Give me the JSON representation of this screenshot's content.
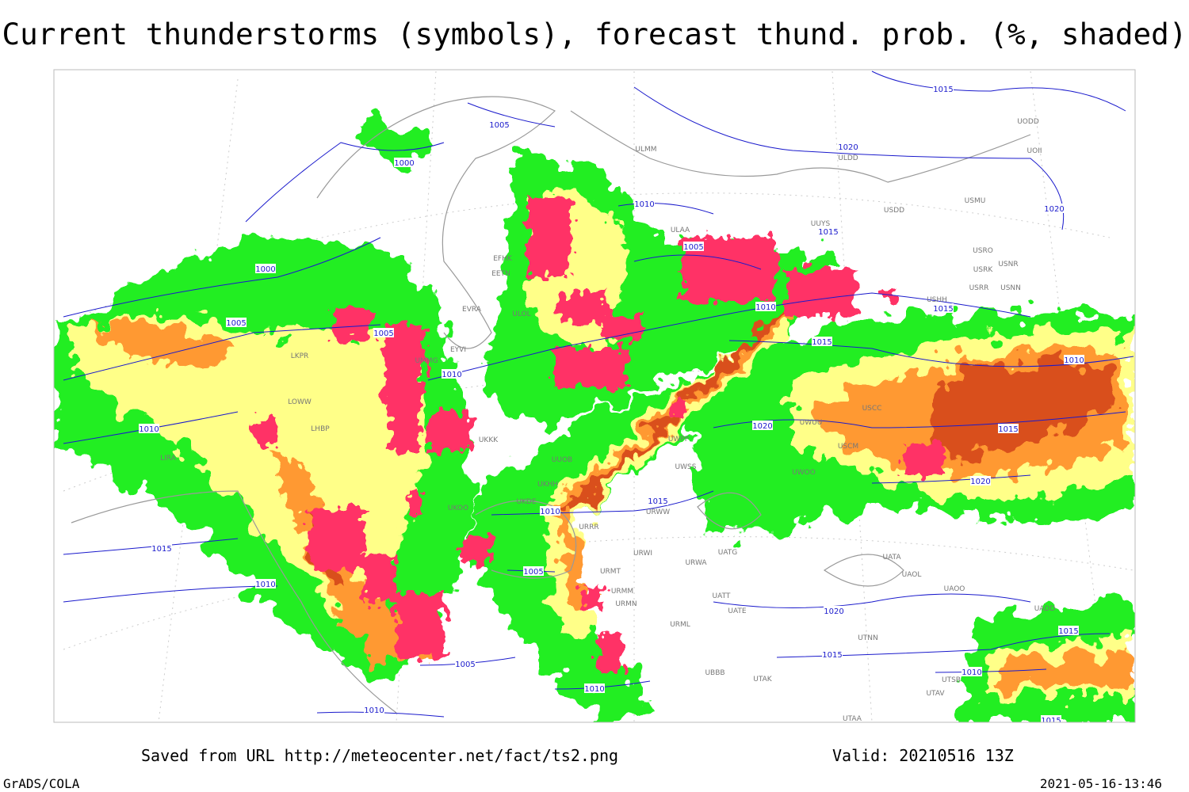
{
  "title": "Current thunderstorms (symbols), forecast thund. prob. (%, shaded)",
  "footer": {
    "source": "Saved from URL http://meteocenter.net/fact/ts2.png",
    "valid": "Valid: 20210516 13Z",
    "software": "GrADS/COLA",
    "timestamp": "2021-05-16-13:46"
  },
  "isobar_labels": [
    "1000",
    "1005",
    "1000",
    "1005",
    "1005",
    "1010",
    "1015",
    "1010",
    "1010",
    "1010",
    "1005",
    "1010",
    "1015",
    "1020",
    "1015",
    "1020",
    "1015",
    "1015",
    "1020",
    "1010",
    "1015",
    "1020",
    "1010",
    "1015",
    "1005",
    "1005",
    "1010",
    "1010",
    "1020",
    "1015",
    "1015",
    "1010",
    "1015"
  ],
  "stations": [
    "ULMM",
    "ULDD",
    "USDD",
    "USMU",
    "UODD",
    "UOII",
    "ULAA",
    "UUYS",
    "USRO",
    "USRK",
    "USNR",
    "USRR",
    "USNN",
    "USHH",
    "EFHK",
    "EETN",
    "EVRA",
    "ULOL",
    "EYVI",
    "UMMG",
    "LKPR",
    "LOWW",
    "LHBP",
    "LIRA",
    "UKKK",
    "UUOB",
    "UKHH",
    "UKDE",
    "UKOO",
    "URRR",
    "UWPP",
    "UWSS",
    "URWW",
    "URWI",
    "UATG",
    "URWA",
    "UATT",
    "UATE",
    "UATA",
    "UAOL",
    "UAOO",
    "UADD",
    "URML",
    "UTNN",
    "UTAK",
    "UBBB",
    "UTSB",
    "UTAV",
    "UTAA",
    "UWOO",
    "USCM",
    "UWUU",
    "USCC",
    "URMT",
    "URMM",
    "URMN"
  ]
}
